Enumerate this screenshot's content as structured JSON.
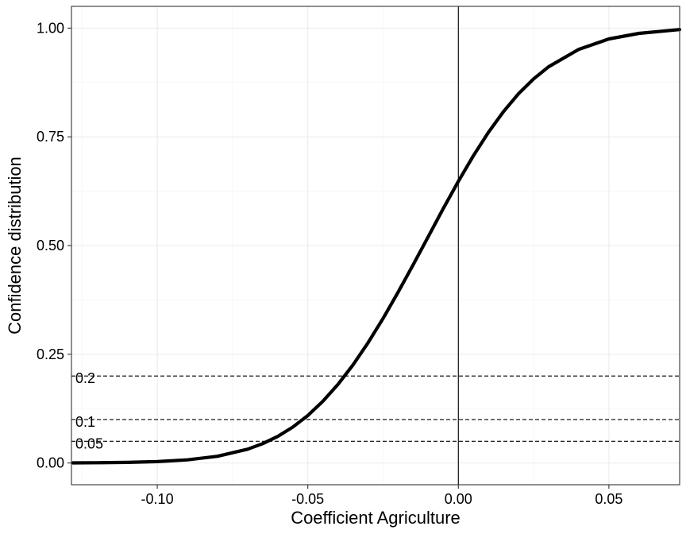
{
  "chart_data": {
    "type": "line",
    "title": "",
    "xlabel": "Coefficient Agriculture",
    "ylabel": "Confidence distribution",
    "xlim": [
      -0.1285,
      0.0735
    ],
    "ylim": [
      -0.05,
      1.05
    ],
    "x_ticks": [
      -0.1,
      -0.05,
      0.0,
      0.05
    ],
    "x_tick_labels": [
      "-0.10",
      "-0.05",
      "0.00",
      "0.05"
    ],
    "y_ticks": [
      0.0,
      0.25,
      0.5,
      0.75,
      1.0
    ],
    "y_tick_labels": [
      "0.00",
      "0.25",
      "0.50",
      "0.75",
      "1.00"
    ],
    "grid": true,
    "vertical_reference_line": 0.0,
    "horizontal_reference_lines": [
      {
        "y": 0.2,
        "label": "0.2"
      },
      {
        "y": 0.1,
        "label": "0.1"
      },
      {
        "y": 0.05,
        "label": "0.05"
      }
    ],
    "series": [
      {
        "x": [
          -0.128,
          -0.12,
          -0.11,
          -0.1,
          -0.09,
          -0.08,
          -0.07,
          -0.065,
          -0.06,
          -0.055,
          -0.05,
          -0.045,
          -0.04,
          -0.035,
          -0.03,
          -0.025,
          -0.02,
          -0.015,
          -0.01,
          -0.005,
          0.0,
          0.005,
          0.01,
          0.015,
          0.02,
          0.025,
          0.03,
          0.04,
          0.05,
          0.06,
          0.0735
        ],
        "y": [
          0.0003,
          0.0006,
          0.0014,
          0.0032,
          0.0072,
          0.0155,
          0.0316,
          0.0444,
          0.0611,
          0.0825,
          0.1092,
          0.1418,
          0.1806,
          0.2255,
          0.2763,
          0.3324,
          0.3927,
          0.456,
          0.5207,
          0.5851,
          0.6476,
          0.7065,
          0.7603,
          0.808,
          0.8492,
          0.8834,
          0.9112,
          0.9512,
          0.975,
          0.9879,
          0.9966
        ],
        "color": "#000000"
      }
    ]
  }
}
